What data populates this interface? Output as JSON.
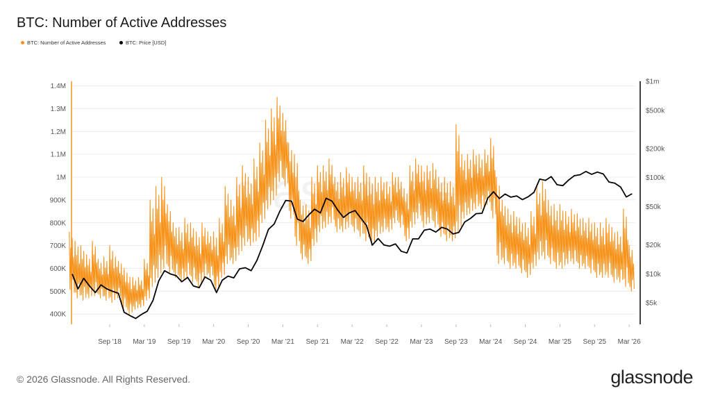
{
  "title": "BTC: Number of Active Addresses",
  "footer": "© 2026 Glassnode. All Rights Reserved.",
  "logo": "glassnode",
  "watermark": "glassnode",
  "chart_data": {
    "type": "line",
    "title": "BTC: Number of Active Addresses",
    "grid": true,
    "legend_placement": "top-left",
    "legend": [
      {
        "name": "BTC: Number of Active Addresses",
        "color": "#f7931a"
      },
      {
        "name": "BTC: Price [USD]",
        "color": "#000000"
      }
    ],
    "x_start": "2018-02",
    "x_end": "2026-03",
    "x_ticks": [
      "Sep '18",
      "Mar '19",
      "Sep '19",
      "Mar '20",
      "Sep '20",
      "Mar '21",
      "Sep '21",
      "Mar '22",
      "Sep '22",
      "Mar '23",
      "Sep '23",
      "Mar '24",
      "Sep '24",
      "Mar '25",
      "Sep '25",
      "Mar '26"
    ],
    "left_axis": {
      "ylim": [
        355000,
        1420000
      ],
      "ticks": [
        400000,
        500000,
        600000,
        700000,
        800000,
        900000,
        1000000,
        1100000,
        1200000,
        1300000,
        1400000
      ],
      "tick_labels": [
        "400K",
        "500K",
        "600K",
        "700K",
        "800K",
        "900K",
        "1M",
        "1.1M",
        "1.2M",
        "1.3M",
        "1.4M"
      ]
    },
    "right_axis": {
      "scale": "log",
      "ylim": [
        3000,
        1000000
      ],
      "ticks": [
        5000,
        10000,
        20000,
        50000,
        100000,
        200000,
        500000,
        1000000
      ],
      "tick_labels": [
        "$5k",
        "$10k",
        "$20k",
        "$50k",
        "$100k",
        "$200k",
        "$500k",
        "$1m"
      ]
    },
    "series": [
      {
        "name": "BTC: Number of Active Addresses",
        "axis": "left",
        "monthly_low": [
          480000,
          470000,
          460000,
          470000,
          480000,
          470000,
          460000,
          450000,
          470000,
          420000,
          400000,
          420000,
          430000,
          460000,
          520000,
          560000,
          600000,
          580000,
          560000,
          540000,
          560000,
          540000,
          520000,
          560000,
          560000,
          500000,
          560000,
          620000,
          620000,
          660000,
          700000,
          700000,
          720000,
          800000,
          860000,
          900000,
          980000,
          960000,
          820000,
          700000,
          640000,
          620000,
          700000,
          760000,
          780000,
          800000,
          760000,
          760000,
          780000,
          760000,
          740000,
          720000,
          700000,
          740000,
          760000,
          760000,
          800000,
          780000,
          720000,
          780000,
          820000,
          780000,
          800000,
          780000,
          740000,
          720000,
          720000,
          760000,
          820000,
          840000,
          860000,
          860000,
          880000,
          820000,
          620000,
          620000,
          600000,
          600000,
          580000,
          560000,
          600000,
          640000,
          640000,
          620000,
          600000,
          600000,
          620000,
          620000,
          600000,
          600000,
          580000,
          560000,
          560000,
          560000,
          540000,
          540000,
          520000,
          500000
        ],
        "monthly_high": [
          760000,
          720000,
          700000,
          660000,
          720000,
          640000,
          650000,
          700000,
          650000,
          620000,
          580000,
          560000,
          560000,
          640000,
          900000,
          960000,
          1000000,
          880000,
          800000,
          780000,
          820000,
          800000,
          760000,
          800000,
          760000,
          760000,
          820000,
          960000,
          900000,
          1000000,
          1050000,
          1000000,
          1080000,
          1150000,
          1250000,
          1300000,
          1350000,
          1280000,
          1150000,
          1100000,
          900000,
          880000,
          1000000,
          1050000,
          1050000,
          1080000,
          1000000,
          1020000,
          1040000,
          1000000,
          1000000,
          1050000,
          1000000,
          1000000,
          1000000,
          980000,
          1020000,
          1000000,
          950000,
          1050000,
          1080000,
          1050000,
          1050000,
          1060000,
          1000000,
          1000000,
          980000,
          1230000,
          1100000,
          1100000,
          1120000,
          1100000,
          1120000,
          1170000,
          1000000,
          900000,
          860000,
          850000,
          820000,
          800000,
          850000,
          960000,
          980000,
          900000,
          880000,
          880000,
          850000,
          860000,
          840000,
          820000,
          820000,
          800000,
          800000,
          820000,
          780000,
          760000,
          860000,
          700000
        ]
      },
      {
        "name": "BTC: Price [USD]",
        "axis": "right",
        "monthly": [
          10000,
          7000,
          9000,
          7500,
          6400,
          7700,
          7000,
          6600,
          6300,
          4000,
          3700,
          3450,
          3800,
          4100,
          5300,
          8500,
          10800,
          10000,
          9600,
          8300,
          9200,
          7500,
          7200,
          9300,
          8600,
          6400,
          8600,
          9500,
          9100,
          11300,
          11600,
          10800,
          13800,
          19600,
          29000,
          33000,
          45000,
          58000,
          57000,
          37000,
          35000,
          41000,
          47000,
          43000,
          61000,
          57000,
          46000,
          38500,
          43000,
          45500,
          38000,
          31800,
          19900,
          23300,
          20000,
          19400,
          20500,
          17200,
          16500,
          23100,
          23100,
          28500,
          29200,
          27200,
          30500,
          29200,
          26000,
          27000,
          34500,
          37700,
          42300,
          42600,
          61200,
          71300,
          60600,
          67500,
          62700,
          64600,
          59000,
          63300,
          70200,
          96400,
          93400,
          102400,
          84300,
          82500,
          94200,
          104600,
          107100,
          115700,
          108200,
          114000,
          109000,
          90000,
          87500,
          80000,
          63000,
          68000
        ]
      }
    ]
  }
}
